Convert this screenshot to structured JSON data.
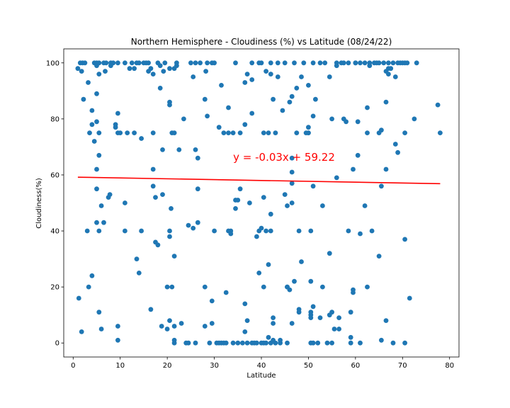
{
  "chart_data": {
    "type": "scatter",
    "title": "Northern Hemisphere - Cloudiness (%) vs Latitude (08/24/22)",
    "xlabel": "Latitude",
    "ylabel": "Cloudiness(%)",
    "xlim": [
      -2,
      82
    ],
    "ylim": [
      -5,
      105
    ],
    "xticks": [
      0,
      10,
      20,
      30,
      40,
      50,
      60,
      70,
      80
    ],
    "yticks": [
      0,
      20,
      40,
      60,
      80,
      100
    ],
    "grid": false,
    "point_color": "#1f77b4",
    "line_color": "#ff0000",
    "regression": {
      "slope": -0.03,
      "intercept": 59.22,
      "x_range": [
        1,
        78
      ],
      "equation": "y = -0.03x + 59.22",
      "label_x": 34,
      "label_y": 65
    },
    "points": [
      [
        1,
        98
      ],
      [
        1.5,
        100
      ],
      [
        1.8,
        97
      ],
      [
        2,
        100
      ],
      [
        2.5,
        100
      ],
      [
        1.2,
        16
      ],
      [
        1.8,
        4
      ],
      [
        2.2,
        87
      ],
      [
        3,
        40
      ],
      [
        3.2,
        93
      ],
      [
        3.5,
        75
      ],
      [
        3.3,
        20
      ],
      [
        4,
        24
      ],
      [
        4,
        83
      ],
      [
        4,
        78
      ],
      [
        4.5,
        72
      ],
      [
        4.5,
        100
      ],
      [
        5,
        100
      ],
      [
        5,
        99
      ],
      [
        5,
        89
      ],
      [
        5,
        79
      ],
      [
        5,
        62
      ],
      [
        5,
        55
      ],
      [
        5,
        43
      ],
      [
        5.5,
        100
      ],
      [
        5.5,
        96
      ],
      [
        5.5,
        75
      ],
      [
        5.5,
        67
      ],
      [
        5.5,
        40
      ],
      [
        5.5,
        11
      ],
      [
        6,
        5
      ],
      [
        6,
        49
      ],
      [
        6.5,
        100
      ],
      [
        6.8,
        97
      ],
      [
        6.5,
        43
      ],
      [
        7,
        100
      ],
      [
        7.5,
        52
      ],
      [
        7.8,
        53
      ],
      [
        8,
        99
      ],
      [
        8,
        100
      ],
      [
        8.5,
        100
      ],
      [
        9,
        78
      ],
      [
        9,
        77
      ],
      [
        9.5,
        82
      ],
      [
        9.5,
        100
      ],
      [
        9.5,
        75
      ],
      [
        9.5,
        6
      ],
      [
        9.5,
        1
      ],
      [
        10,
        75
      ],
      [
        11,
        50
      ],
      [
        11,
        40
      ],
      [
        11,
        100
      ],
      [
        11.5,
        75
      ],
      [
        12,
        98
      ],
      [
        12.5,
        100
      ],
      [
        13,
        98
      ],
      [
        13,
        75
      ],
      [
        13.5,
        30
      ],
      [
        13.5,
        100
      ],
      [
        14,
        100
      ],
      [
        14,
        25
      ],
      [
        14.5,
        73
      ],
      [
        14.5,
        40
      ],
      [
        15,
        100
      ],
      [
        15.5,
        100
      ],
      [
        16,
        97
      ],
      [
        16,
        100
      ],
      [
        16.5,
        12
      ],
      [
        16.5,
        98
      ],
      [
        17,
        75
      ],
      [
        17,
        62
      ],
      [
        17,
        56
      ],
      [
        17,
        96
      ],
      [
        17.5,
        52
      ],
      [
        17.5,
        36
      ],
      [
        18,
        35
      ],
      [
        18,
        100
      ],
      [
        18.5,
        91
      ],
      [
        18.5,
        99
      ],
      [
        18.8,
        6
      ],
      [
        19,
        53
      ],
      [
        19,
        69
      ],
      [
        19.2,
        97
      ],
      [
        19.5,
        100
      ],
      [
        20,
        20
      ],
      [
        20,
        5
      ],
      [
        20.5,
        98
      ],
      [
        20.5,
        86
      ],
      [
        20.5,
        85
      ],
      [
        20.5,
        40
      ],
      [
        20.5,
        38
      ],
      [
        20.5,
        8
      ],
      [
        20.8,
        48
      ],
      [
        21,
        20
      ],
      [
        21,
        75
      ],
      [
        21.5,
        98
      ],
      [
        21.5,
        75
      ],
      [
        21.5,
        31
      ],
      [
        21.5,
        6
      ],
      [
        21.5,
        1
      ],
      [
        21.5,
        0
      ],
      [
        22,
        100
      ],
      [
        22,
        99
      ],
      [
        22.5,
        69
      ],
      [
        23,
        7
      ],
      [
        23.5,
        80
      ],
      [
        24,
        0
      ],
      [
        24.5,
        0
      ],
      [
        24.5,
        42
      ],
      [
        25,
        100
      ],
      [
        25.5,
        95
      ],
      [
        25.5,
        41
      ],
      [
        26,
        100
      ],
      [
        26,
        69
      ],
      [
        26,
        0
      ],
      [
        26.5,
        66
      ],
      [
        26.5,
        55
      ],
      [
        26.5,
        43
      ],
      [
        27,
        100
      ],
      [
        28,
        87
      ],
      [
        28,
        6
      ],
      [
        28,
        20
      ],
      [
        28.2,
        97
      ],
      [
        28.5,
        100
      ],
      [
        28.5,
        81
      ],
      [
        29,
        0
      ],
      [
        29.5,
        15
      ],
      [
        29.5,
        100
      ],
      [
        29.5,
        7
      ],
      [
        30,
        100
      ],
      [
        30,
        40
      ],
      [
        30.5,
        0
      ],
      [
        31,
        0
      ],
      [
        31,
        77
      ],
      [
        31.5,
        0
      ],
      [
        31.5,
        92
      ],
      [
        32,
        0
      ],
      [
        32,
        75
      ],
      [
        32.5,
        0
      ],
      [
        32.5,
        18
      ],
      [
        33,
        40
      ],
      [
        33,
        84
      ],
      [
        33,
        75
      ],
      [
        33.5,
        40
      ],
      [
        33.5,
        39
      ],
      [
        34,
        0
      ],
      [
        34,
        75
      ],
      [
        34.5,
        100
      ],
      [
        34.5,
        51
      ],
      [
        34.5,
        48
      ],
      [
        35,
        51
      ],
      [
        35,
        0
      ],
      [
        35.5,
        75
      ],
      [
        35.5,
        55
      ],
      [
        36,
        0
      ],
      [
        36.5,
        93
      ],
      [
        36.5,
        78
      ],
      [
        36.5,
        14
      ],
      [
        36.5,
        4
      ],
      [
        37,
        96
      ],
      [
        37,
        8
      ],
      [
        37,
        0
      ],
      [
        37.5,
        50
      ],
      [
        38,
        100
      ],
      [
        38,
        94
      ],
      [
        38,
        82
      ],
      [
        38,
        0
      ],
      [
        38.5,
        0
      ],
      [
        39,
        38
      ],
      [
        39,
        0
      ],
      [
        39.5,
        100
      ],
      [
        39.5,
        25
      ],
      [
        39.5,
        40
      ],
      [
        40,
        100
      ],
      [
        40,
        41
      ],
      [
        40,
        0
      ],
      [
        40.5,
        75
      ],
      [
        40.5,
        52
      ],
      [
        40.5,
        20
      ],
      [
        40.5,
        0
      ],
      [
        41,
        97
      ],
      [
        41,
        40
      ],
      [
        41,
        0
      ],
      [
        41.5,
        28
      ],
      [
        41.5,
        2
      ],
      [
        41.5,
        75
      ],
      [
        42,
        100
      ],
      [
        42,
        96
      ],
      [
        42,
        46
      ],
      [
        42,
        40
      ],
      [
        42,
        0
      ],
      [
        42.5,
        9
      ],
      [
        42.5,
        7
      ],
      [
        42.5,
        1
      ],
      [
        42.5,
        87
      ],
      [
        43,
        0
      ],
      [
        43,
        75
      ],
      [
        43.5,
        95
      ],
      [
        43.5,
        100
      ],
      [
        44,
        0
      ],
      [
        44,
        1
      ],
      [
        44.5,
        83
      ],
      [
        45,
        53
      ],
      [
        45,
        100
      ],
      [
        45.5,
        20
      ],
      [
        45.5,
        0
      ],
      [
        45.5,
        49
      ],
      [
        45.5,
        20
      ],
      [
        46,
        86
      ],
      [
        46,
        19
      ],
      [
        46.5,
        88
      ],
      [
        46.5,
        50
      ],
      [
        46.5,
        7
      ],
      [
        46.5,
        66
      ],
      [
        46.5,
        61
      ],
      [
        46.5,
        57
      ],
      [
        47,
        22
      ],
      [
        47,
        100
      ],
      [
        47.5,
        91
      ],
      [
        47.5,
        75
      ],
      [
        48,
        40
      ],
      [
        48,
        12
      ],
      [
        48,
        11
      ],
      [
        48.5,
        95
      ],
      [
        48.5,
        29
      ],
      [
        49,
        100
      ],
      [
        49.5,
        75
      ],
      [
        50,
        75
      ],
      [
        50,
        92
      ],
      [
        50,
        77
      ],
      [
        50,
        75
      ],
      [
        50.5,
        40
      ],
      [
        50.5,
        22
      ],
      [
        50.5,
        11
      ],
      [
        50.5,
        9
      ],
      [
        50.5,
        10
      ],
      [
        50.5,
        0
      ],
      [
        51,
        100
      ],
      [
        51,
        81
      ],
      [
        51,
        56
      ],
      [
        51,
        13
      ],
      [
        51,
        0
      ],
      [
        51.5,
        87
      ],
      [
        52,
        0
      ],
      [
        52.5,
        100
      ],
      [
        52.5,
        9
      ],
      [
        53,
        49
      ],
      [
        53,
        20
      ],
      [
        53.5,
        100
      ],
      [
        54,
        0
      ],
      [
        54.5,
        10
      ],
      [
        54.5,
        95
      ],
      [
        54.5,
        32
      ],
      [
        55,
        80
      ],
      [
        55,
        11
      ],
      [
        55,
        0
      ],
      [
        55.5,
        5
      ],
      [
        56,
        100
      ],
      [
        56,
        99
      ],
      [
        56,
        59
      ],
      [
        56.5,
        9
      ],
      [
        56.5,
        5
      ],
      [
        57,
        100
      ],
      [
        57.5,
        100
      ],
      [
        57.5,
        80
      ],
      [
        58,
        79
      ],
      [
        58.5,
        100
      ],
      [
        58.5,
        40
      ],
      [
        59,
        11
      ],
      [
        59,
        0
      ],
      [
        59,
        2
      ],
      [
        59.5,
        62
      ],
      [
        59.5,
        19
      ],
      [
        59.5,
        18
      ],
      [
        60,
        100
      ],
      [
        60,
        100
      ],
      [
        60.5,
        79
      ],
      [
        60.5,
        67
      ],
      [
        61,
        100
      ],
      [
        61,
        39
      ],
      [
        61,
        0
      ],
      [
        62,
        49
      ],
      [
        62,
        100
      ],
      [
        62.5,
        75
      ],
      [
        62.5,
        20
      ],
      [
        62.5,
        84
      ],
      [
        63,
        100
      ],
      [
        63,
        99
      ],
      [
        63.5,
        40
      ],
      [
        64,
        100
      ],
      [
        64.5,
        100
      ],
      [
        65,
        100
      ],
      [
        65,
        31
      ],
      [
        65,
        75
      ],
      [
        65.5,
        76
      ],
      [
        65.5,
        56
      ],
      [
        65.5,
        1
      ],
      [
        66,
        100
      ],
      [
        66.5,
        86
      ],
      [
        66.5,
        97
      ],
      [
        66.5,
        8
      ],
      [
        66.5,
        62
      ],
      [
        67,
        98
      ],
      [
        67,
        96
      ],
      [
        67,
        100
      ],
      [
        67.5,
        98
      ],
      [
        68,
        0
      ],
      [
        68,
        100
      ],
      [
        68.5,
        95
      ],
      [
        68.5,
        71
      ],
      [
        69,
        100
      ],
      [
        69,
        68
      ],
      [
        69.5,
        100
      ],
      [
        70,
        100
      ],
      [
        70.5,
        37
      ],
      [
        70.5,
        75
      ],
      [
        70.5,
        100
      ],
      [
        70.5,
        0
      ],
      [
        71,
        100
      ],
      [
        71.5,
        16
      ],
      [
        72.5,
        80
      ],
      [
        73,
        100
      ],
      [
        77.5,
        85
      ],
      [
        78,
        75
      ]
    ]
  }
}
